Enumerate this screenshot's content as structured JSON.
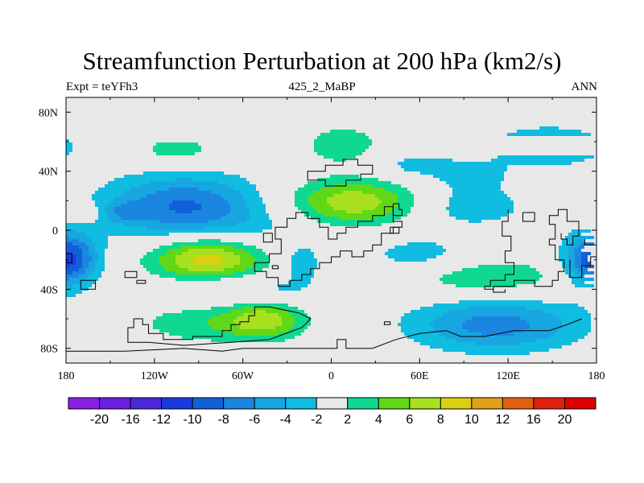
{
  "chart_data": {
    "type": "heatmap",
    "title": "Streamfunction Perturbation at 200 hPa (km2/s)",
    "left_label": "Expt = teYFh3",
    "center_label": "425_2_MaBP",
    "right_label": "ANN",
    "x_ticks": [
      {
        "value": -180,
        "label": "180"
      },
      {
        "value": -120,
        "label": "120W"
      },
      {
        "value": -60,
        "label": "60W"
      },
      {
        "value": 0,
        "label": "0"
      },
      {
        "value": 60,
        "label": "60E"
      },
      {
        "value": 120,
        "label": "120E"
      },
      {
        "value": 180,
        "label": "180"
      }
    ],
    "y_ticks": [
      {
        "value": 80,
        "label": "80N"
      },
      {
        "value": 40,
        "label": "40N"
      },
      {
        "value": 0,
        "label": "0"
      },
      {
        "value": -40,
        "label": "40S"
      },
      {
        "value": -80,
        "label": "80S"
      }
    ],
    "xlim": [
      -180,
      180
    ],
    "ylim": [
      -90,
      90
    ],
    "levels": [
      -20,
      -16,
      -12,
      -10,
      -8,
      -6,
      -4,
      -2,
      2,
      4,
      6,
      8,
      10,
      12,
      16,
      20
    ],
    "level_labels": [
      "-20",
      "-16",
      "-12",
      "-10",
      "-8",
      "-6",
      "-4",
      "-2",
      "2",
      "4",
      "6",
      "8",
      "10",
      "12",
      "16",
      "20"
    ],
    "colors": [
      "#8a1fe6",
      "#6a1ee0",
      "#4a28d8",
      "#1a3ae0",
      "#1060d8",
      "#1a86e0",
      "#18a6e0",
      "#10bce0",
      "#e8e8e8",
      "#10d890",
      "#60d818",
      "#a8e020",
      "#d8d010",
      "#e0a018",
      "#e06010",
      "#e02010",
      "#e00000"
    ],
    "features": [
      {
        "lon": -100,
        "lat": 17,
        "sx": 38,
        "sy": 15,
        "amp": -8
      },
      {
        "lon": -140,
        "lat": 12,
        "sx": 12,
        "sy": 5,
        "amp": -3
      },
      {
        "lon": -70,
        "lat": -5,
        "sx": 38,
        "sy": 12,
        "amp": -3
      },
      {
        "lon": -83,
        "lat": -18,
        "sx": 28,
        "sy": 12,
        "amp": 10.5
      },
      {
        "lon": -60,
        "lat": -40,
        "sx": 40,
        "sy": 8,
        "amp": -3.5
      },
      {
        "lon": -175,
        "lat": -20,
        "sx": 14,
        "sy": 13,
        "amp": -6
      },
      {
        "lon": 175,
        "lat": -20,
        "sx": 14,
        "sy": 13,
        "amp": -6
      },
      {
        "lon": -80,
        "lat": -63,
        "sx": 40,
        "sy": 10,
        "amp": 3.6
      },
      {
        "lon": -45,
        "lat": -60,
        "sx": 18,
        "sy": 9,
        "amp": 5.5
      },
      {
        "lon": 15,
        "lat": 19,
        "sx": 32,
        "sy": 11,
        "amp": 7.5
      },
      {
        "lon": 8,
        "lat": 58,
        "sx": 20,
        "sy": 10,
        "amp": 3.4
      },
      {
        "lon": 55,
        "lat": 44,
        "sx": 20,
        "sy": 7,
        "amp": -2.8
      },
      {
        "lon": 95,
        "lat": 37,
        "sx": 18,
        "sy": 7,
        "amp": -2.8
      },
      {
        "lon": 148,
        "lat": 57,
        "sx": 32,
        "sy": 11,
        "amp": -3.8
      },
      {
        "lon": 95,
        "lat": 16,
        "sx": 28,
        "sy": 10,
        "amp": -3.5
      },
      {
        "lon": 60,
        "lat": -17,
        "sx": 26,
        "sy": 9,
        "amp": -3.4
      },
      {
        "lon": 105,
        "lat": -32,
        "sx": 42,
        "sy": 10,
        "amp": 3.8
      },
      {
        "lon": 112,
        "lat": -64,
        "sx": 42,
        "sy": 13,
        "amp": -7
      },
      {
        "lon": -105,
        "lat": 54,
        "sx": 22,
        "sy": 7,
        "amp": 3.2
      },
      {
        "lon": -168,
        "lat": 12,
        "sx": 9,
        "sy": 4,
        "amp": 3.2
      },
      {
        "lon": -20,
        "lat": -22,
        "sx": 9,
        "sy": 8,
        "amp": -3.4
      }
    ]
  }
}
